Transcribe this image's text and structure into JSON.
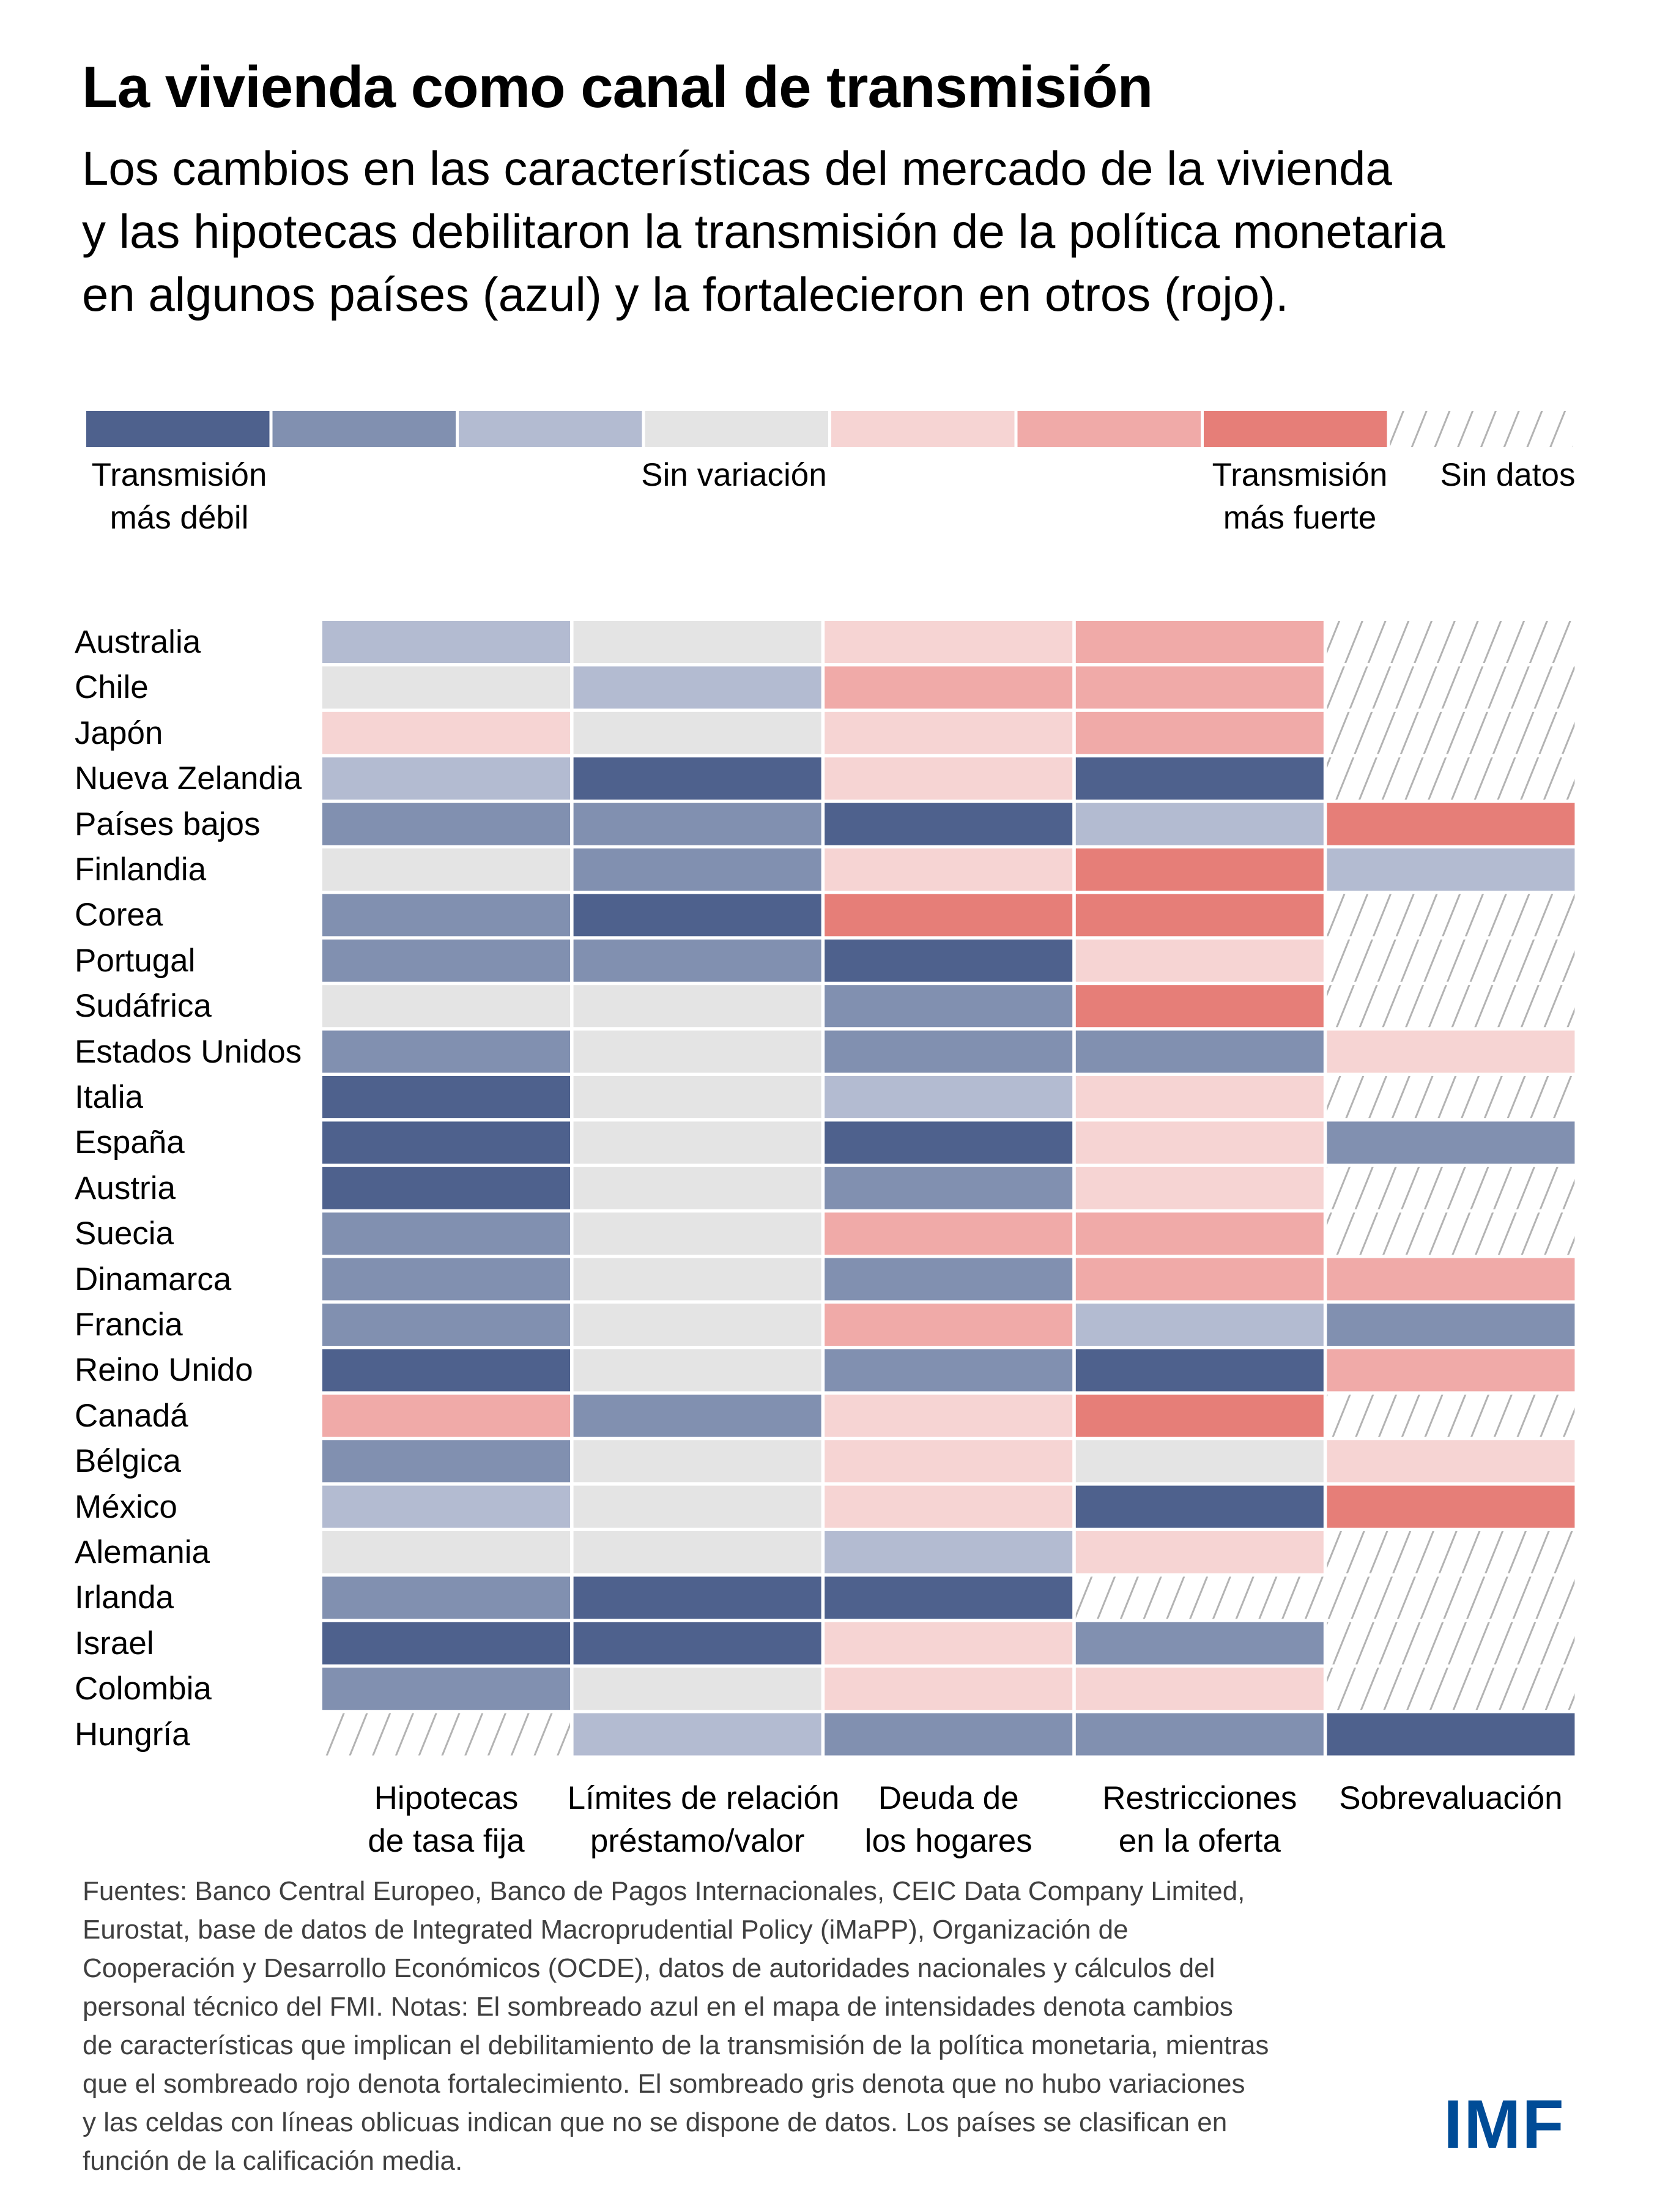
{
  "title": "La vivienda como canal de transmisión",
  "subtitle_lines": [
    "Los cambios en las características del mercado de la vivienda",
    "y las hipotecas debilitaron la transmisión de la política monetaria",
    "en algunos países (azul) y la fortalecieron en otros (rojo)."
  ],
  "colors": {
    "-3": "#4E618D",
    "-2": "#8190B0",
    "-1": "#B3BBD1",
    "0": "#E4E4E4",
    "1": "#F6D4D3",
    "2": "#F0AAA8",
    "3": "#E67E78",
    "nodata_hatch": "#B3B3B3",
    "logo": "#004C97",
    "footer_text": "#404040"
  },
  "legend": {
    "scale": [
      -3,
      -2,
      -1,
      0,
      1,
      2,
      3,
      null
    ],
    "label_weak_1": "Transmisión",
    "label_weak_2": "más débil",
    "label_none": "Sin variación",
    "label_strong_1": "Transmisión",
    "label_strong_2": "más fuerte",
    "label_nodata": "Sin datos"
  },
  "chart_data": {
    "type": "heatmap",
    "title": "La vivienda como canal de transmisión",
    "value_scale": "-3 = transmisión más débil (azul oscuro) … 0 = sin variación (gris) … +3 = transmisión más fuerte (rojo); null = sin datos (rayado)",
    "columns": [
      [
        "Hipotecas",
        "de tasa fija"
      ],
      [
        "Límites de relación",
        "préstamo/valor"
      ],
      [
        "Deuda de",
        "los hogares"
      ],
      [
        "Restricciones",
        "en la oferta"
      ],
      [
        "Sobrevaluación",
        ""
      ]
    ],
    "rows": [
      "Australia",
      "Chile",
      "Japón",
      "Nueva Zelandia",
      "Países bajos",
      "Finlandia",
      "Corea",
      "Portugal",
      "Sudáfrica",
      "Estados Unidos",
      "Italia",
      "España",
      "Austria",
      "Suecia",
      "Dinamarca",
      "Francia",
      "Reino Unido",
      "Canadá",
      "Bélgica",
      "México",
      "Alemania",
      "Irlanda",
      "Israel",
      "Colombia",
      "Hungría"
    ],
    "values": [
      [
        -1,
        0,
        1,
        2,
        null
      ],
      [
        0,
        -1,
        2,
        2,
        null
      ],
      [
        1,
        0,
        1,
        2,
        null
      ],
      [
        -1,
        -3,
        1,
        -3,
        null
      ],
      [
        -2,
        -2,
        -3,
        -1,
        3
      ],
      [
        0,
        -2,
        1,
        3,
        -1
      ],
      [
        -2,
        -3,
        3,
        3,
        null
      ],
      [
        -2,
        -2,
        -3,
        1,
        null
      ],
      [
        0,
        0,
        -2,
        3,
        null
      ],
      [
        -2,
        0,
        -2,
        -2,
        1
      ],
      [
        -3,
        0,
        -1,
        1,
        null
      ],
      [
        -3,
        0,
        -3,
        1,
        -2
      ],
      [
        -3,
        0,
        -2,
        1,
        null
      ],
      [
        -2,
        0,
        2,
        2,
        null
      ],
      [
        -2,
        0,
        -2,
        2,
        2
      ],
      [
        -2,
        0,
        2,
        -1,
        -2
      ],
      [
        -3,
        0,
        -2,
        -3,
        2
      ],
      [
        2,
        -2,
        1,
        3,
        null
      ],
      [
        -2,
        0,
        1,
        0,
        1
      ],
      [
        -1,
        0,
        1,
        -3,
        3
      ],
      [
        0,
        0,
        -1,
        1,
        null
      ],
      [
        -2,
        -3,
        -3,
        null,
        null
      ],
      [
        -3,
        -3,
        1,
        -2,
        null
      ],
      [
        -2,
        0,
        1,
        1,
        null
      ],
      [
        null,
        -1,
        -2,
        -2,
        -3
      ]
    ]
  },
  "footer_lines": [
    "Fuentes: Banco Central Europeo, Banco de Pagos Internacionales, CEIC Data Company Limited,",
    "Eurostat, base de datos de Integrated Macroprudential Policy (iMaPP), Organización de",
    "Cooperación y Desarrollo Económicos (OCDE), datos de autoridades nacionales y cálculos del",
    "personal técnico del FMI. Notas: El sombreado azul en el mapa de intensidades denota cambios",
    "de características que implican el debilitamiento de la transmisión de la política monetaria, mientras",
    "que el sombreado rojo denota fortalecimiento. El sombreado gris denota que no hubo variaciones",
    "y las celdas con líneas oblicuas indican que no se dispone de datos. Los países se clasifican en",
    "función de la calificación media."
  ],
  "logo": "IMF"
}
